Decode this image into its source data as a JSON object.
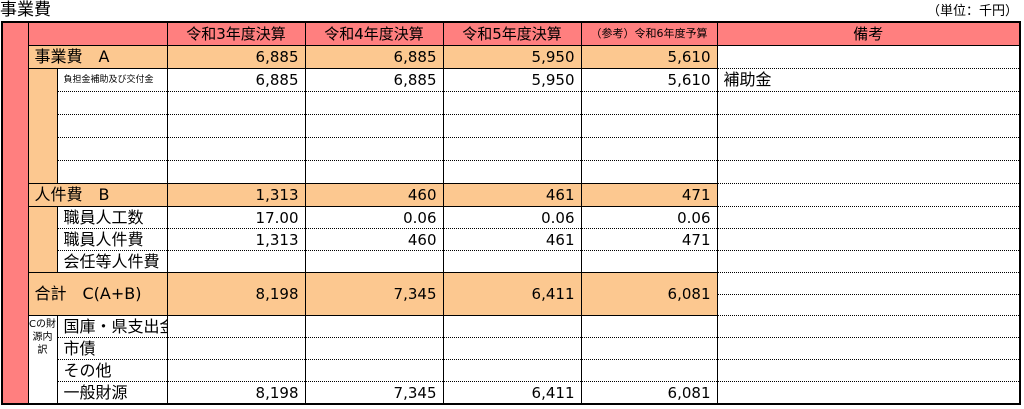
{
  "title": "事業費",
  "unit": "（単位：千円）",
  "columns": [
    "令和3年度決算",
    "令和4年度決算",
    "令和5年度決算",
    "（参考）令和6年度予算",
    "備考"
  ],
  "colors": {
    "header_red": "#ff7f7f",
    "subtotal_orange": "#fcc890"
  },
  "business": {
    "label": "事業費　A",
    "values": [
      "6,885",
      "6,885",
      "5,950",
      "5,610"
    ],
    "items": [
      {
        "label": "負担金補助及び交付金",
        "values": [
          "6,885",
          "6,885",
          "5,950",
          "5,610"
        ],
        "memo": "補助金"
      }
    ]
  },
  "personnel": {
    "label": "人件費　B",
    "values": [
      "1,313",
      "460",
      "461",
      "471"
    ],
    "items": [
      {
        "label": "職員人工数",
        "values": [
          "17.00",
          "0.06",
          "0.06",
          "0.06"
        ]
      },
      {
        "label": "職員人件費",
        "values": [
          "1,313",
          "460",
          "461",
          "471"
        ]
      },
      {
        "label": "会任等人件費",
        "values": [
          "",
          "",
          "",
          ""
        ]
      }
    ]
  },
  "total": {
    "label": "合計　C(A+B)",
    "values": [
      "8,198",
      "7,345",
      "6,411",
      "6,081"
    ]
  },
  "funding": {
    "label": "Cの財源内訳",
    "items": [
      {
        "label": "国庫・県支出金",
        "values": [
          "",
          "",
          "",
          ""
        ]
      },
      {
        "label": "市債",
        "values": [
          "",
          "",
          "",
          ""
        ]
      },
      {
        "label": "その他",
        "values": [
          "",
          "",
          "",
          ""
        ]
      },
      {
        "label": "一般財源",
        "values": [
          "8,198",
          "7,345",
          "6,411",
          "6,081"
        ]
      }
    ]
  }
}
